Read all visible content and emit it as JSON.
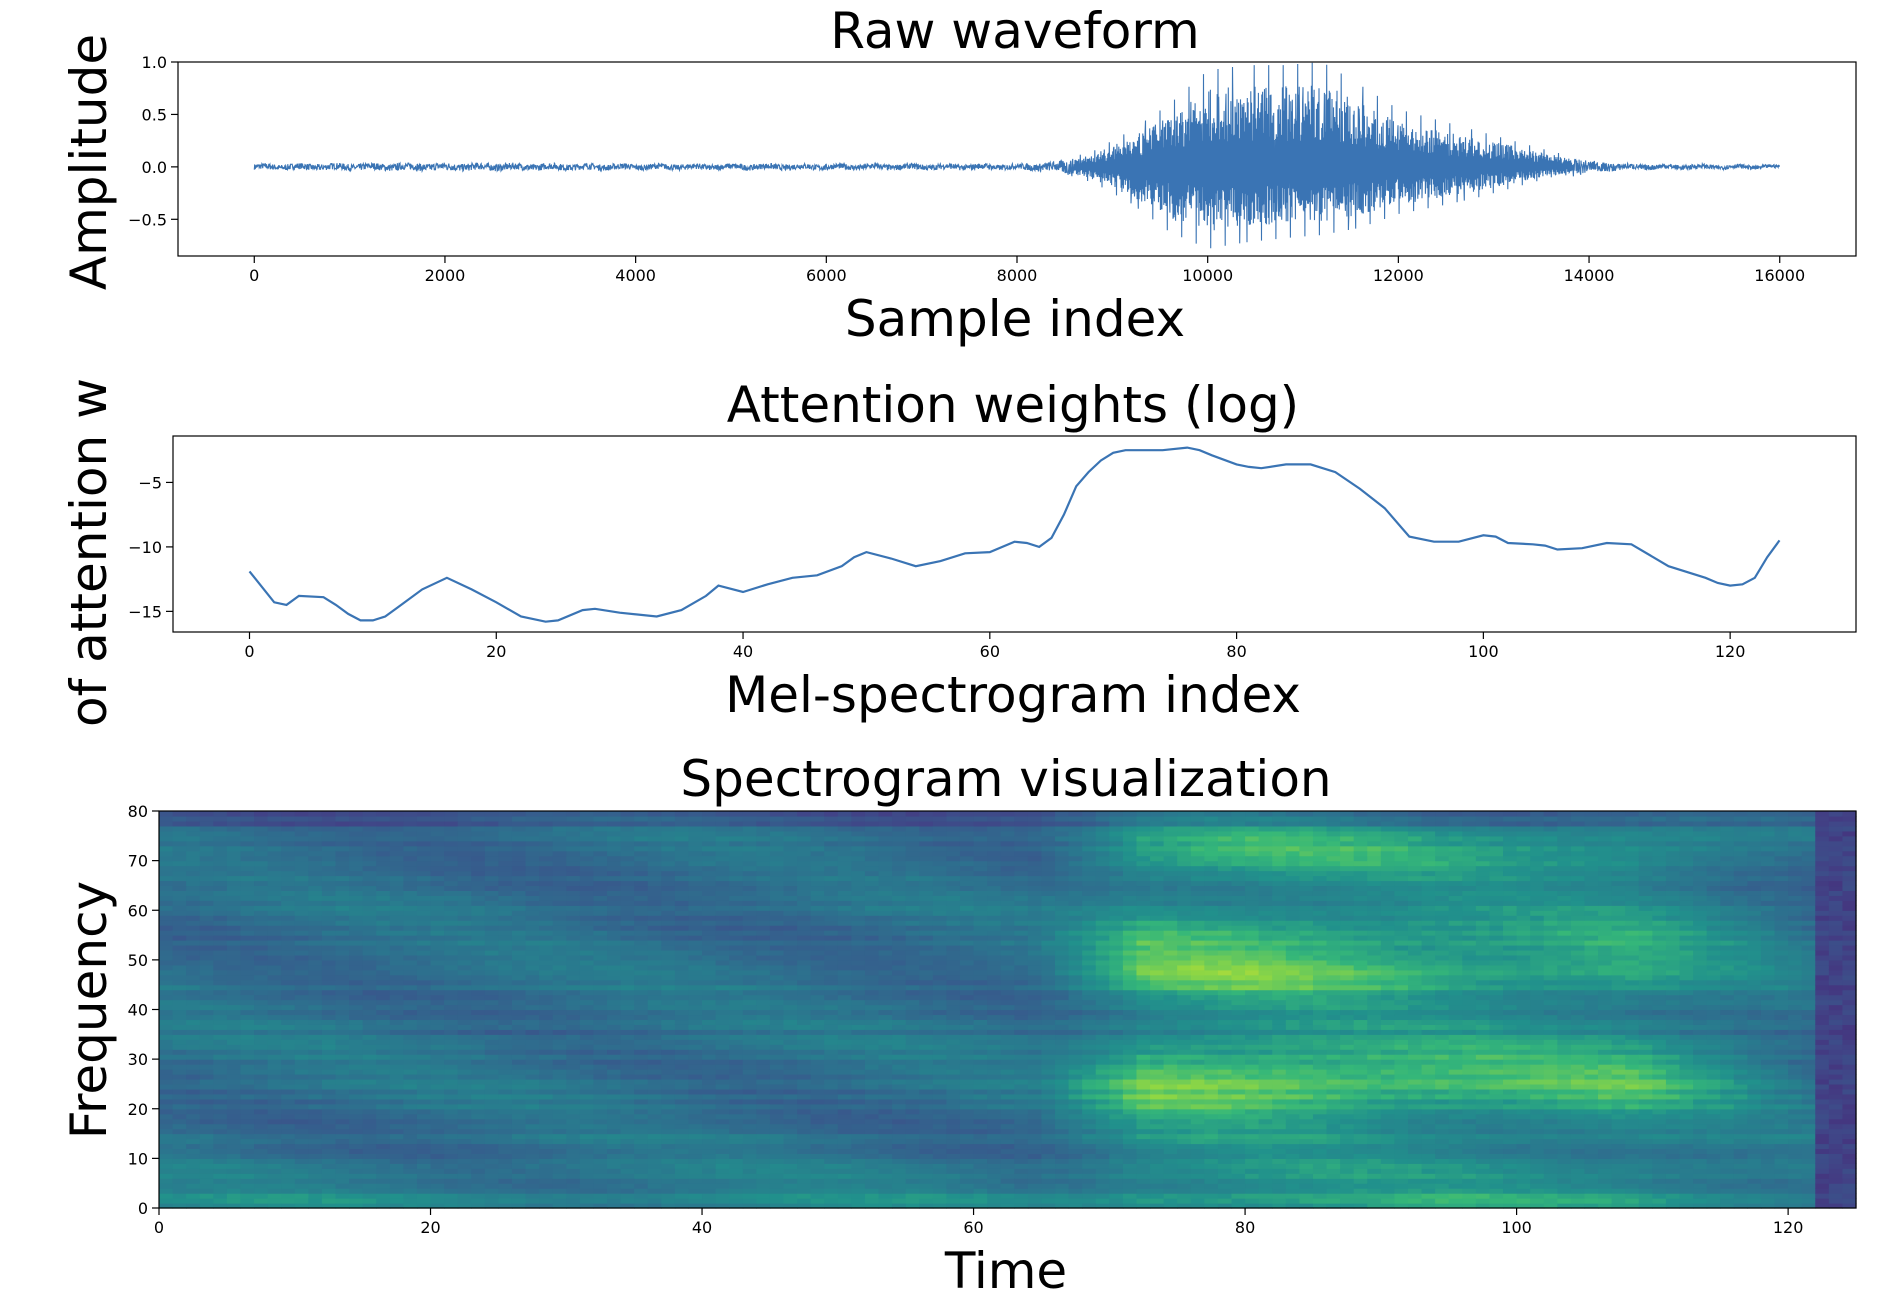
{
  "chart_data": [
    {
      "type": "line",
      "title": "Raw waveform",
      "xlabel": "Sample index",
      "ylabel": "Amplitude",
      "xlim": [
        -800,
        16800
      ],
      "ylim": [
        -0.85,
        1.0
      ],
      "xticks": [
        0,
        2000,
        4000,
        6000,
        8000,
        10000,
        12000,
        14000,
        16000
      ],
      "yticks": [
        -0.5,
        0.0,
        0.5,
        1.0
      ],
      "ytick_labels": [
        "−0.5",
        "0.0",
        "0.5",
        "1.0"
      ],
      "line_color": "#3a74b4",
      "x_range": [
        0,
        16000
      ],
      "envelope": {
        "x": [
          0,
          2000,
          4000,
          6000,
          8000,
          8400,
          8800,
          9200,
          9600,
          10000,
          10400,
          10800,
          11200,
          11600,
          12000,
          12400,
          12800,
          13200,
          13600,
          14000,
          14400,
          16000
        ],
        "upper": [
          0.03,
          0.04,
          0.03,
          0.03,
          0.03,
          0.05,
          0.15,
          0.35,
          0.6,
          0.92,
          0.97,
          0.97,
          1.0,
          0.78,
          0.55,
          0.45,
          0.35,
          0.25,
          0.15,
          0.06,
          0.03,
          0.02
        ],
        "lower": [
          -0.03,
          -0.04,
          -0.03,
          -0.03,
          -0.03,
          -0.05,
          -0.15,
          -0.35,
          -0.62,
          -0.78,
          -0.72,
          -0.68,
          -0.65,
          -0.58,
          -0.45,
          -0.38,
          -0.3,
          -0.2,
          -0.1,
          -0.05,
          -0.03,
          -0.02
        ]
      },
      "grid": false
    },
    {
      "type": "line",
      "title": "Attention weights (log)",
      "xlabel": "Mel-spectrogram index",
      "ylabel": "Log of attention weights",
      "ylabel_visible": "of attention w",
      "xlim": [
        -6.2,
        130.2
      ],
      "ylim": [
        -16.6,
        -1.4
      ],
      "xticks": [
        0,
        20,
        40,
        60,
        80,
        100,
        120
      ],
      "yticks": [
        -15,
        -10,
        -5
      ],
      "ytick_labels": [
        "−15",
        "−10",
        "−5"
      ],
      "line_color": "#3a74b4",
      "x": [
        0,
        2,
        3,
        4,
        6,
        7,
        8,
        9,
        10,
        11,
        12,
        14,
        16,
        18,
        20,
        22,
        24,
        25,
        27,
        28,
        30,
        33,
        35,
        37,
        38,
        40,
        42,
        44,
        46,
        48,
        49,
        50,
        52,
        54,
        56,
        58,
        60,
        62,
        63,
        64,
        65,
        66,
        67,
        68,
        69,
        70,
        71,
        72,
        74,
        76,
        77,
        78,
        80,
        81,
        82,
        84,
        86,
        88,
        90,
        92,
        94,
        96,
        98,
        100,
        101,
        102,
        104,
        105,
        106,
        108,
        110,
        112,
        115,
        118,
        119,
        120,
        121,
        122,
        123,
        124
      ],
      "y": [
        -11.9,
        -14.3,
        -14.5,
        -13.8,
        -13.9,
        -14.5,
        -15.2,
        -15.7,
        -15.7,
        -15.4,
        -14.7,
        -13.3,
        -12.4,
        -13.3,
        -14.3,
        -15.4,
        -15.8,
        -15.7,
        -14.9,
        -14.8,
        -15.1,
        -15.4,
        -14.9,
        -13.8,
        -13.0,
        -13.5,
        -12.9,
        -12.4,
        -12.2,
        -11.5,
        -10.8,
        -10.4,
        -10.9,
        -11.5,
        -11.1,
        -10.5,
        -10.4,
        -9.6,
        -9.7,
        -10.0,
        -9.3,
        -7.5,
        -5.3,
        -4.2,
        -3.3,
        -2.7,
        -2.5,
        -2.5,
        -2.5,
        -2.3,
        -2.5,
        -2.9,
        -3.6,
        -3.8,
        -3.9,
        -3.6,
        -3.6,
        -4.2,
        -5.5,
        -7.0,
        -9.2,
        -9.6,
        -9.6,
        -9.1,
        -9.2,
        -9.7,
        -9.8,
        -9.9,
        -10.2,
        -10.1,
        -9.7,
        -9.8,
        -11.5,
        -12.4,
        -12.8,
        -13.0,
        -12.9,
        -12.4,
        -10.8,
        -9.5
      ]
    },
    {
      "type": "heatmap",
      "title": "Spectrogram visualization",
      "xlabel": "Time",
      "ylabel": "Frequency",
      "xlim": [
        0,
        125
      ],
      "ylim": [
        0,
        80
      ],
      "xticks": [
        0,
        20,
        40,
        60,
        80,
        100,
        120
      ],
      "yticks": [
        0,
        10,
        20,
        30,
        40,
        50,
        60,
        70,
        80
      ],
      "colormap": "viridis",
      "n_time": 125,
      "n_freq": 80,
      "speech_region": {
        "start": 64,
        "end": 122
      }
    }
  ]
}
